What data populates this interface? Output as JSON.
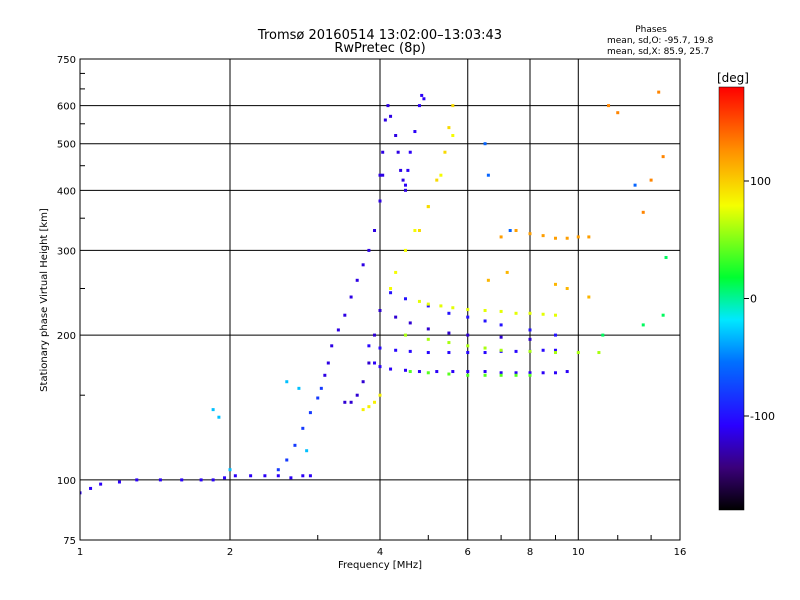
{
  "chart_data": {
    "type": "scatter",
    "title": "Tromsø 20160514 13:02:00–13:03:43",
    "subtitle": "RwPretec (8p)",
    "xlabel": "Frequency [MHz]",
    "ylabel": "Stationary phase Virtual Height [km]",
    "x_scale": "log",
    "y_scale": "log",
    "xlim": [
      1,
      16
    ],
    "ylim": [
      75,
      750
    ],
    "x_ticks": [
      1,
      2,
      4,
      6,
      8,
      10,
      16
    ],
    "y_ticks": [
      75,
      100,
      200,
      300,
      400,
      500,
      600,
      750
    ],
    "grid": true,
    "stats": {
      "heading": "Phases",
      "line_o": "mean, sd,O: -95.7, 19.8",
      "line_x": "mean, sd,X: 85.9, 25.7"
    },
    "colorbar": {
      "label": "[deg]",
      "min": -180,
      "max": 180,
      "ticks": [
        100,
        0,
        -100
      ],
      "tick_labels": [
        "100",
        "0",
        "-100"
      ]
    },
    "traces": [
      {
        "x": [
          1.0,
          1.05,
          1.1,
          1.2,
          1.3,
          1.45,
          1.6,
          1.75,
          1.85,
          1.95,
          2.05,
          2.2,
          2.35,
          2.5,
          2.65,
          2.8,
          2.9
        ],
        "y": [
          94,
          96,
          98,
          99,
          100,
          100,
          100,
          100,
          100,
          101,
          102,
          102,
          102,
          102,
          101,
          102,
          102
        ],
        "phase": -110
      },
      {
        "x": [
          2.5,
          2.6,
          2.7,
          2.8,
          2.9,
          3.0,
          3.05
        ],
        "y": [
          105,
          110,
          118,
          128,
          138,
          148,
          155
        ],
        "phase": -80
      },
      {
        "x": [
          3.1,
          3.15,
          3.2,
          3.3,
          3.4,
          3.5,
          3.6,
          3.7,
          3.8,
          3.9,
          4.0,
          4.05
        ],
        "y": [
          165,
          175,
          190,
          205,
          220,
          240,
          260,
          280,
          300,
          330,
          380,
          430
        ],
        "phase": -115
      },
      {
        "x": [
          3.4,
          3.5,
          3.6,
          3.7,
          3.8,
          3.9
        ],
        "y": [
          145,
          145,
          150,
          160,
          175,
          200
        ],
        "phase": -120
      },
      {
        "x": [
          4.0,
          4.05,
          4.1,
          4.15,
          4.2,
          4.3,
          4.35,
          4.4,
          4.45,
          4.5
        ],
        "y": [
          430,
          480,
          560,
          600,
          570,
          520,
          480,
          440,
          420,
          400
        ],
        "phase": -115
      },
      {
        "x": [
          4.5,
          4.55,
          4.6,
          4.7,
          4.8,
          4.85,
          4.9
        ],
        "y": [
          410,
          440,
          480,
          530,
          600,
          630,
          620
        ],
        "phase": -110
      },
      {
        "x": [
          4.2,
          4.3,
          4.5,
          4.7,
          5.0,
          5.3,
          5.6
        ],
        "y": [
          250,
          270,
          300,
          330,
          370,
          430,
          520
        ],
        "phase": 80
      },
      {
        "x": [
          4.8,
          5.0,
          5.2,
          5.4,
          5.5,
          5.6
        ],
        "y": [
          330,
          370,
          420,
          480,
          540,
          600
        ],
        "phase": 95
      },
      {
        "x": [
          3.9,
          4.0,
          4.2,
          4.5,
          4.8,
          5.2,
          5.6,
          6.0,
          6.5,
          7.0,
          7.5,
          8.0,
          8.5,
          9.0,
          9.5
        ],
        "y": [
          175,
          172,
          170,
          169,
          168,
          168,
          168,
          168,
          168,
          167,
          167,
          167,
          167,
          167,
          168
        ],
        "phase": -110
      },
      {
        "x": [
          4.6,
          5.0,
          5.5,
          6.0,
          6.5,
          7.0,
          7.5,
          8.0
        ],
        "y": [
          168,
          167,
          166,
          165,
          165,
          165,
          165,
          165
        ],
        "phase": 40
      },
      {
        "x": [
          3.8,
          4.0,
          4.3,
          4.6,
          5.0,
          5.5,
          6.0,
          6.5,
          7.0,
          7.5,
          8.0,
          8.5,
          9.0
        ],
        "y": [
          190,
          188,
          186,
          185,
          184,
          184,
          184,
          184,
          185,
          185,
          185,
          186,
          186
        ],
        "phase": -105
      },
      {
        "x": [
          4.5,
          5.0,
          5.5,
          6.0,
          6.5,
          7.0,
          8.0,
          9.0,
          10.0,
          11.0
        ],
        "y": [
          200,
          196,
          193,
          190,
          188,
          186,
          185,
          184,
          184,
          184
        ],
        "phase": 60
      },
      {
        "x": [
          4.2,
          4.5,
          5.0,
          5.5,
          6.0,
          6.5,
          7.0,
          8.0,
          9.0
        ],
        "y": [
          245,
          238,
          230,
          222,
          218,
          214,
          210,
          205,
          200
        ],
        "phase": -100
      },
      {
        "x": [
          4.8,
          5.0,
          5.3,
          5.6,
          6.0,
          6.5,
          7.0,
          7.5,
          8.0,
          8.5,
          9.0
        ],
        "y": [
          235,
          232,
          230,
          228,
          226,
          225,
          224,
          222,
          222,
          221,
          220
        ],
        "phase": 75
      },
      {
        "x": [
          4.0,
          4.3,
          4.6,
          5.0,
          5.5,
          6.0,
          7.0,
          8.0
        ],
        "y": [
          225,
          218,
          212,
          206,
          202,
          200,
          198,
          196
        ],
        "phase": -120
      },
      {
        "x": [
          3.7,
          3.8,
          3.9,
          4.0
        ],
        "y": [
          140,
          142,
          145,
          150
        ],
        "phase": 85
      },
      {
        "x": [
          2.0,
          1.85,
          1.9,
          2.6,
          2.75,
          2.85
        ],
        "y": [
          105,
          140,
          135,
          160,
          155,
          115
        ],
        "phase": -30
      },
      {
        "x": [
          7.0,
          7.5,
          8.0,
          8.5,
          9.0,
          9.5,
          10.0,
          10.5
        ],
        "y": [
          320,
          330,
          325,
          322,
          318,
          318,
          320,
          320
        ],
        "phase": 120
      },
      {
        "x": [
          6.6,
          7.2,
          9.0,
          9.5,
          10.5
        ],
        "y": [
          260,
          270,
          255,
          250,
          240
        ],
        "phase": 110
      },
      {
        "x": [
          11.5,
          12.0,
          13.5,
          14.0,
          14.5,
          14.8
        ],
        "y": [
          600,
          580,
          360,
          420,
          640,
          470
        ],
        "phase": 130
      },
      {
        "x": [
          11.2,
          13.5,
          14.8,
          15.0
        ],
        "y": [
          200,
          210,
          220,
          290
        ],
        "phase": 10
      },
      {
        "x": [
          6.5,
          6.6,
          7.3,
          13.0
        ],
        "y": [
          500,
          430,
          330,
          410
        ],
        "phase": -60
      }
    ]
  }
}
